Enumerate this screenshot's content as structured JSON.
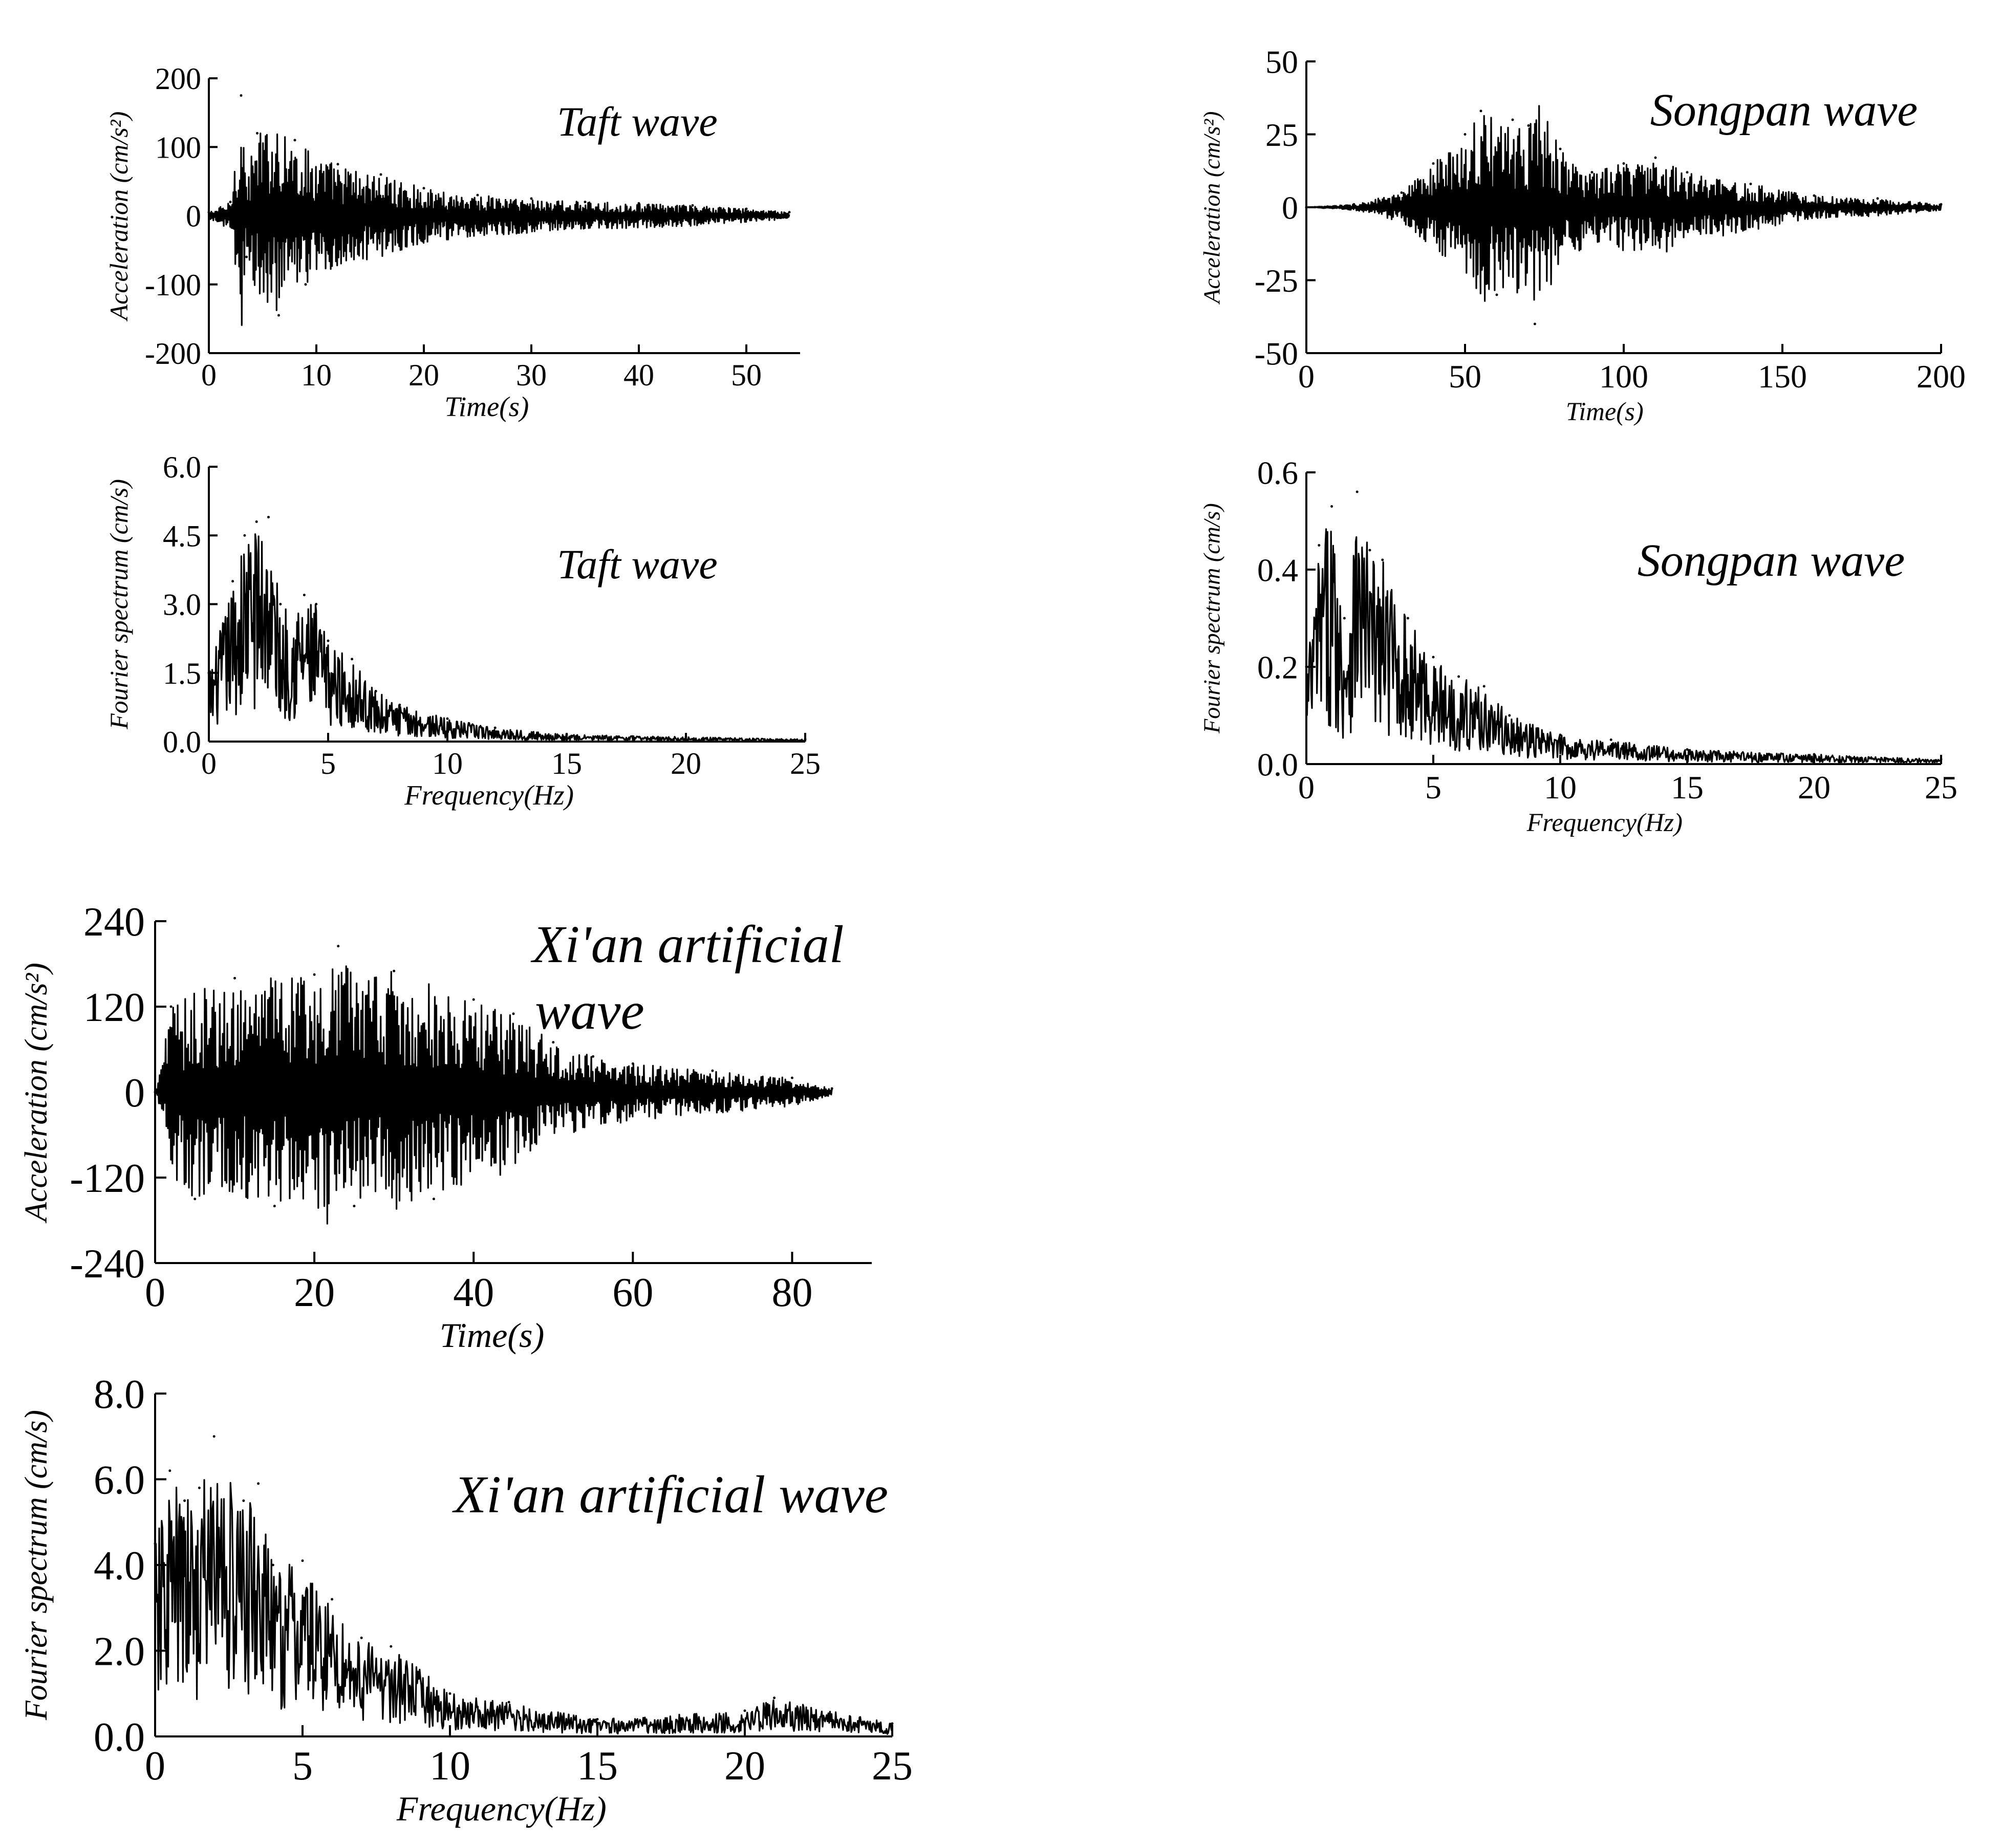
{
  "chart_data": [
    {
      "id": "taft-acc",
      "type": "line",
      "title": "Taft wave",
      "xlabel": "Time(s)",
      "ylabel": "Acceleration (cm/s²)",
      "xlim": [
        0,
        55
      ],
      "ylim": [
        -200,
        200
      ],
      "xticks": [
        0,
        10,
        20,
        30,
        40,
        50
      ],
      "yticks": [
        -200,
        -100,
        0,
        100,
        200
      ],
      "grid": false,
      "series": [
        {
          "line_color": "#000000",
          "x": [
            0,
            2,
            3,
            3.5,
            4.5,
            6.5,
            8,
            9,
            12,
            16,
            20,
            25,
            30,
            35,
            40,
            45,
            50,
            54
          ],
          "y": [
            5,
            20,
            175,
            -60,
            120,
            -145,
            110,
            -100,
            75,
            60,
            40,
            30,
            25,
            20,
            18,
            15,
            10,
            5
          ]
        }
      ]
    },
    {
      "id": "taft-fourier",
      "type": "line",
      "title": "Taft wave",
      "xlabel": "Frequency(Hz)",
      "ylabel": "Fourier spectrum (cm/s)",
      "xlim": [
        0,
        25
      ],
      "ylim": [
        0,
        6.0
      ],
      "xticks": [
        0,
        5,
        10,
        15,
        20,
        25
      ],
      "yticks": [
        0.0,
        1.5,
        3.0,
        4.5,
        6.0
      ],
      "yticklabels": [
        "0.0",
        "1.5",
        "3.0",
        "4.5",
        "6.0"
      ],
      "grid": false,
      "series": [
        {
          "line_color": "#000000",
          "x": [
            0,
            1,
            1.5,
            2,
            2.5,
            3,
            4,
            4.5,
            5,
            6,
            7,
            8,
            10,
            12,
            15,
            20,
            25
          ],
          "y": [
            1.5,
            3.5,
            4.5,
            4.8,
            4.9,
            3.0,
            3.2,
            3.0,
            2.2,
            1.8,
            1.1,
            0.8,
            0.5,
            0.3,
            0.15,
            0.1,
            0.05
          ]
        }
      ]
    },
    {
      "id": "songpan-acc",
      "type": "line",
      "title": "Songpan wave",
      "xlabel": "Time(s)",
      "ylabel": "Acceleration (cm/s²)",
      "xlim": [
        0,
        200
      ],
      "ylim": [
        -50,
        50
      ],
      "xticks": [
        0,
        50,
        100,
        150,
        200
      ],
      "yticks": [
        -50,
        -25,
        0,
        25,
        50
      ],
      "grid": false,
      "series": [
        {
          "line_color": "#000000",
          "x": [
            0,
            15,
            30,
            40,
            50,
            55,
            60,
            65,
            70,
            72,
            80,
            90,
            100,
            110,
            120,
            140,
            160,
            180,
            200
          ],
          "y": [
            0,
            1,
            5,
            15,
            25,
            33,
            -30,
            30,
            28,
            -40,
            20,
            12,
            15,
            17,
            12,
            8,
            4,
            3,
            1
          ]
        }
      ]
    },
    {
      "id": "songpan-fourier",
      "type": "line",
      "title": "Songpan wave",
      "xlabel": "Frequency(Hz)",
      "ylabel": "Fourier spectrum (cm/s)",
      "xlim": [
        0,
        25
      ],
      "ylim": [
        0,
        0.6
      ],
      "xticks": [
        0,
        5,
        10,
        15,
        20,
        25
      ],
      "yticks": [
        0.0,
        0.2,
        0.4,
        0.6
      ],
      "yticklabels": [
        "0.0",
        "0.2",
        "0.4",
        "0.6"
      ],
      "grid": false,
      "series": [
        {
          "line_color": "#000000",
          "x": [
            0,
            0.5,
            1,
            1.5,
            2,
            2.5,
            3,
            4,
            5,
            6,
            7,
            8,
            10,
            12,
            15,
            20,
            25
          ],
          "y": [
            0.2,
            0.45,
            0.53,
            0.3,
            0.56,
            0.44,
            0.42,
            0.3,
            0.22,
            0.18,
            0.16,
            0.1,
            0.06,
            0.05,
            0.03,
            0.02,
            0.01
          ]
        }
      ]
    },
    {
      "id": "xian-acc",
      "type": "line",
      "title": "Xi'an artificial wave",
      "xlabel": "Time(s)",
      "ylabel": "Acceleration (cm/s²)",
      "xlim": [
        0,
        90
      ],
      "ylim": [
        -240,
        240
      ],
      "xticks": [
        0,
        20,
        40,
        60,
        80
      ],
      "yticks": [
        -240,
        -120,
        0,
        120,
        240
      ],
      "grid": false,
      "series": [
        {
          "line_color": "#000000",
          "x": [
            0,
            2,
            5,
            10,
            15,
            20,
            23,
            25,
            30,
            35,
            40,
            45,
            50,
            55,
            60,
            70,
            80,
            85
          ],
          "y": [
            0,
            120,
            -150,
            160,
            -160,
            165,
            205,
            -160,
            170,
            -150,
            130,
            110,
            70,
            50,
            40,
            30,
            20,
            5
          ]
        }
      ]
    },
    {
      "id": "xian-fourier",
      "type": "line",
      "title": "Xi'an artificial wave",
      "xlabel": "Frequency(Hz)",
      "ylabel": "Fourier spectrum (cm/s)",
      "xlim": [
        0,
        25
      ],
      "ylim": [
        0,
        8.0
      ],
      "xticks": [
        0,
        5,
        10,
        15,
        20,
        25
      ],
      "yticks": [
        0.0,
        2.0,
        4.0,
        6.0,
        8.0
      ],
      "yticklabels": [
        "0.0",
        "2.0",
        "4.0",
        "6.0",
        "8.0"
      ],
      "grid": false,
      "series": [
        {
          "line_color": "#000000",
          "x": [
            0,
            0.5,
            1,
            1.5,
            2,
            3,
            3.5,
            4,
            5,
            6,
            7,
            8,
            10,
            12,
            15,
            20,
            21,
            25
          ],
          "y": [
            4.5,
            6.2,
            5.5,
            5.8,
            7.0,
            5.5,
            5.9,
            4.0,
            4.1,
            3.2,
            2.3,
            2.1,
            1.0,
            0.8,
            0.4,
            0.6,
            0.9,
            0.3
          ]
        }
      ]
    }
  ]
}
